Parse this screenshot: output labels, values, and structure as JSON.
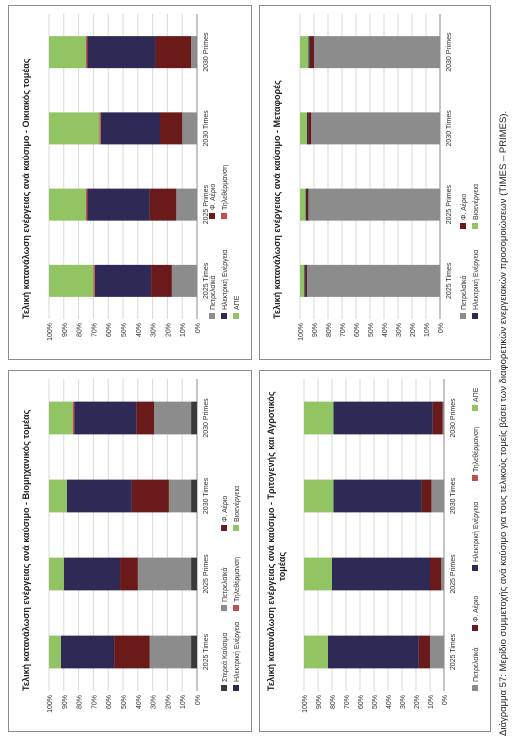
{
  "caption": "Διάγραμμα 57: Μερίδιο συμμετοχής ανά καύσιμο για τους τελικούς τομείς βάσει των διαφορετικών ενεργειακών προσομοιώσεων (TIMES – PRIMES).",
  "colors": {
    "Πετρελαϊκά": "#8c8c8c",
    "Στερεά Καύσιμα": "#3a3a3a",
    "Φ. Αέριο": "#6b1a1a",
    "Ηλεκτρική Ενέργεια": "#2e2a55",
    "Τηλεθέρμανση": "#c0504d",
    "ΑΠΕ": "#92c464",
    "Βιοενέργεια": "#92c464"
  },
  "chart_data": [
    {
      "type": "bar",
      "stacked": true,
      "title": "Τελική κατανάλωση ενέργειας ανά καύσιμο - Βιομηχανικός τομέας",
      "categories": [
        "2025 Times",
        "2025 Primes",
        "2030 Times",
        "2030 Primes"
      ],
      "ylim": [
        0,
        100
      ],
      "yticks": [
        "0%",
        "10%",
        "20%",
        "30%",
        "40%",
        "50%",
        "60%",
        "70%",
        "80%",
        "90%",
        "100%"
      ],
      "series": [
        {
          "name": "Στερεά Καύσιμα",
          "values": [
            4,
            4,
            4,
            4
          ]
        },
        {
          "name": "Πετρελαϊκά",
          "values": [
            28,
            36,
            15,
            25
          ]
        },
        {
          "name": "Φ. Αέριο",
          "values": [
            24,
            12,
            25,
            12
          ]
        },
        {
          "name": "Ηλεκτρική Ενέργεια",
          "values": [
            36,
            38,
            44,
            42
          ]
        },
        {
          "name": "Τηλεθέρμανση",
          "values": [
            0,
            0,
            0,
            1
          ]
        },
        {
          "name": "Βιοενέργεια",
          "values": [
            8,
            10,
            12,
            16
          ]
        }
      ],
      "legend_rows": [
        [
          "Στερεά Καύσιμα",
          "Πετρελαϊκά",
          "Φ. Αέριο"
        ],
        [
          "Ηλεκτρική Ενέργεια",
          "Τηλεθέρμανση",
          "Βιοενέργεια"
        ]
      ]
    },
    {
      "type": "bar",
      "stacked": true,
      "title": "Τελική κατανάλωση ενέργειας ανά καύσιμο - Οικιακός τομέας",
      "categories": [
        "2025 Times",
        "2025 Primes",
        "2030 Times",
        "2030 Primes"
      ],
      "ylim": [
        0,
        100
      ],
      "yticks": [
        "0%",
        "10%",
        "20%",
        "30%",
        "40%",
        "50%",
        "60%",
        "70%",
        "80%",
        "90%",
        "100%"
      ],
      "series": [
        {
          "name": "Πετρελαϊκά",
          "values": [
            17,
            14,
            10,
            4
          ]
        },
        {
          "name": "Φ. Αέριο",
          "values": [
            14,
            18,
            15,
            24
          ]
        },
        {
          "name": "Ηλεκτρική Ενέργεια",
          "values": [
            38,
            42,
            40,
            46
          ]
        },
        {
          "name": "Τηλεθέρμανση",
          "values": [
            1,
            1,
            1,
            1
          ]
        },
        {
          "name": "ΑΠΕ",
          "values": [
            30,
            25,
            34,
            25
          ]
        }
      ],
      "legend_rows": [
        [
          "Πετρελαϊκά",
          "Φ. Αέριο"
        ],
        [
          "Ηλεκτρική Ενέργεια",
          "Τηλεθέρμανση"
        ],
        [
          "ΑΠΕ"
        ]
      ]
    },
    {
      "type": "bar",
      "stacked": true,
      "title": "Τελική κατανάλωση ενέργειας ανά καύσιμο - Τριτογενής και Αγροτικός τομέας",
      "categories": [
        "2025 Times",
        "2025 Primes",
        "2030 Times",
        "2030 Primes"
      ],
      "ylim": [
        0,
        100
      ],
      "yticks": [
        "0%",
        "10%",
        "20%",
        "30%",
        "40%",
        "50%",
        "60%",
        "70%",
        "80%",
        "90%",
        "100%"
      ],
      "series": [
        {
          "name": "Πετρελαϊκά",
          "values": [
            10,
            2,
            9,
            1
          ]
        },
        {
          "name": "Φ. Αέριο",
          "values": [
            8,
            8,
            7,
            7
          ]
        },
        {
          "name": "Ηλεκτρική Ενέργεια",
          "values": [
            65,
            70,
            63,
            71
          ]
        },
        {
          "name": "Τηλεθέρμανση",
          "values": [
            0,
            0,
            0,
            0
          ]
        },
        {
          "name": "ΑΠΕ",
          "values": [
            17,
            20,
            21,
            21
          ]
        }
      ],
      "legend_rows": [
        [
          "Πετρελαϊκά",
          "Φ. Αέριο",
          "Ηλεκτρική Ενέργεια",
          "Τηλεθέρμανση",
          "ΑΠΕ"
        ]
      ]
    },
    {
      "type": "bar",
      "stacked": true,
      "title": "Τελική κατανάλωση ενέργειας ανά καύσιμο - Μεταφορές",
      "categories": [
        "2025 Times",
        "2025 Primes",
        "2030 Times",
        "2030 Primes"
      ],
      "ylim": [
        0,
        100
      ],
      "yticks": [
        "0%",
        "10%",
        "20%",
        "30%",
        "40%",
        "50%",
        "60%",
        "70%",
        "80%",
        "90%",
        "100%"
      ],
      "series": [
        {
          "name": "Πετρελαϊκά",
          "values": [
            95,
            94,
            92,
            90
          ]
        },
        {
          "name": "Φ. Αέριο",
          "values": [
            1,
            1,
            2,
            3
          ]
        },
        {
          "name": "Ηλεκτρική Ενέργεια",
          "values": [
            1,
            1,
            1,
            1
          ]
        },
        {
          "name": "Βιοενέργεια",
          "values": [
            3,
            4,
            5,
            6
          ]
        }
      ],
      "legend_rows": [
        [
          "Πετρελαϊκά",
          "Φ. Αέριο"
        ],
        [
          "Ηλεκτρική Ενέργεια",
          "Βιοενέργεια"
        ]
      ]
    }
  ]
}
